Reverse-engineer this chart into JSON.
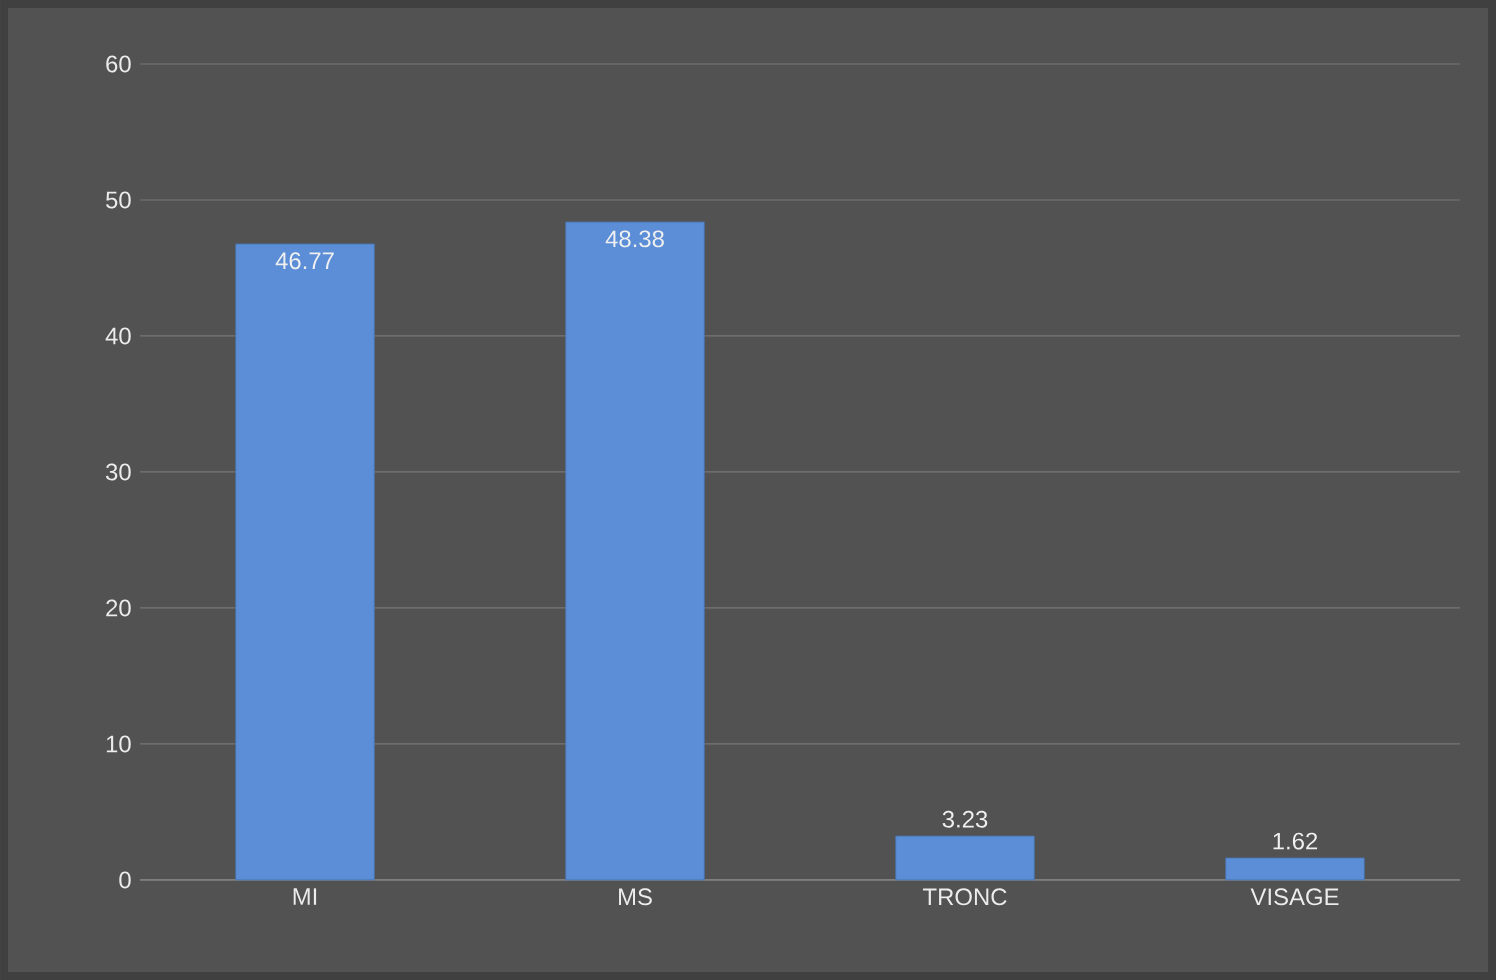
{
  "chart_data": {
    "type": "bar",
    "categories": [
      "MI",
      "MS",
      "TRONC",
      "VISAGE"
    ],
    "values": [
      46.77,
      48.38,
      3.23,
      1.62
    ],
    "color": "#5b8ed6",
    "ylim": [
      0,
      60
    ],
    "yticks": [
      0,
      10,
      20,
      30,
      40,
      50,
      60
    ],
    "grid": "y",
    "data_labels": true
  }
}
